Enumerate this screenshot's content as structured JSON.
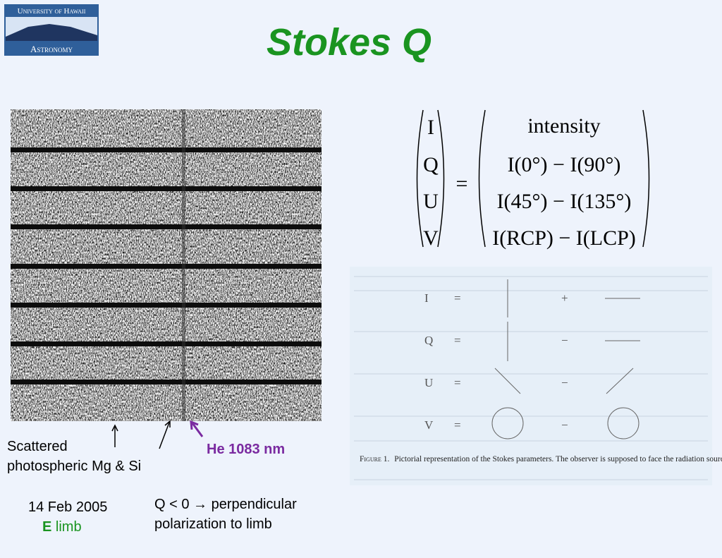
{
  "logo": {
    "top": "University of Hawaii",
    "bottom": "Astronomy"
  },
  "title": "Stokes Q",
  "matrix": {
    "left": [
      "I",
      "Q",
      "U",
      "V"
    ],
    "equals": "=",
    "right": [
      "intensity",
      "I(0°) − I(90°)",
      "I(45°) − I(135°)",
      "I(RCP) − I(LCP)"
    ]
  },
  "figure": {
    "rows": [
      {
        "symbol": "I",
        "equals": "=",
        "sign": "+"
      },
      {
        "symbol": "Q",
        "equals": "=",
        "sign": "−"
      },
      {
        "symbol": "U",
        "equals": "=",
        "sign": "−"
      },
      {
        "symbol": "V",
        "equals": "=",
        "sign": "−"
      }
    ],
    "caption_label": "Figure 1.",
    "caption": "Pictorial representation of the Stokes parameters. The observer is supposed to face the radiation source."
  },
  "labels": {
    "scattered": [
      "Scattered",
      "photospheric Mg & Si"
    ],
    "he": "He 1083 nm",
    "date": "14 Feb 2005",
    "limb_letter": "E",
    "limb": "limb",
    "note": [
      "Q < 0 → perpendicular",
      "polarization to limb"
    ]
  }
}
